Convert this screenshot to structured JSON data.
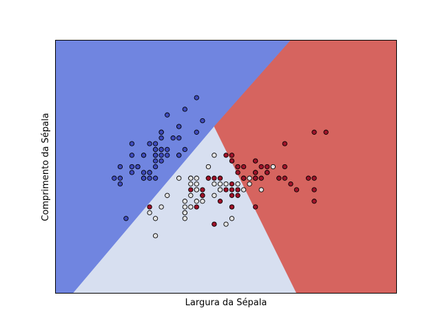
{
  "chart_data": {
    "type": "scatter",
    "title": "",
    "xlabel": "Largura da Sépala",
    "ylabel": "Comprimento da Sépala",
    "xlim": [
      3.3,
      9.1
    ],
    "ylim": [
      1.0,
      5.4
    ],
    "grid": false,
    "ticks_visible": false,
    "background": "decision regions of a 3-class classifier",
    "region_colors": {
      "class_0": "#7085e0",
      "class_1": "#d7dff0",
      "class_2": "#d6645f"
    },
    "decision_regions": [
      {
        "class": "class_0",
        "polygon": [
          [
            3.3,
            1.0
          ],
          [
            3.6,
            1.0
          ],
          [
            6.0,
            3.9
          ],
          [
            7.3,
            5.4
          ],
          [
            3.3,
            5.4
          ]
        ]
      },
      {
        "class": "class_1",
        "polygon": [
          [
            3.6,
            1.0
          ],
          [
            7.4,
            1.0
          ],
          [
            6.0,
            3.9
          ]
        ]
      },
      {
        "class": "class_2",
        "polygon": [
          [
            6.0,
            3.9
          ],
          [
            7.4,
            1.0
          ],
          [
            9.1,
            1.0
          ],
          [
            9.1,
            5.4
          ],
          [
            7.3,
            5.4
          ]
        ]
      }
    ],
    "series": [
      {
        "marker_color": "#3f4bbd",
        "points": [
          [
            5.1,
            3.5
          ],
          [
            4.9,
            3.0
          ],
          [
            4.7,
            3.2
          ],
          [
            4.6,
            3.1
          ],
          [
            5.0,
            3.6
          ],
          [
            5.4,
            3.9
          ],
          [
            4.6,
            3.4
          ],
          [
            5.0,
            3.4
          ],
          [
            4.4,
            2.9
          ],
          [
            4.9,
            3.1
          ],
          [
            5.4,
            3.7
          ],
          [
            4.8,
            3.4
          ],
          [
            4.8,
            3.0
          ],
          [
            4.3,
            3.0
          ],
          [
            5.8,
            4.0
          ],
          [
            5.7,
            4.4
          ],
          [
            5.4,
            3.9
          ],
          [
            5.1,
            3.5
          ],
          [
            5.7,
            3.8
          ],
          [
            5.1,
            3.8
          ],
          [
            5.4,
            3.4
          ],
          [
            5.1,
            3.7
          ],
          [
            4.6,
            3.6
          ],
          [
            5.1,
            3.3
          ],
          [
            4.8,
            3.4
          ],
          [
            5.0,
            3.0
          ],
          [
            5.0,
            3.4
          ],
          [
            5.2,
            3.5
          ],
          [
            5.2,
            3.4
          ],
          [
            4.7,
            3.2
          ],
          [
            4.8,
            3.1
          ],
          [
            5.4,
            3.4
          ],
          [
            5.2,
            4.1
          ],
          [
            5.5,
            4.2
          ],
          [
            4.9,
            3.1
          ],
          [
            5.0,
            3.2
          ],
          [
            5.5,
            3.5
          ],
          [
            4.9,
            3.6
          ],
          [
            4.4,
            3.0
          ],
          [
            5.1,
            3.4
          ],
          [
            5.0,
            3.5
          ],
          [
            4.5,
            2.3
          ],
          [
            4.4,
            3.2
          ],
          [
            5.0,
            3.5
          ],
          [
            5.1,
            3.8
          ],
          [
            4.8,
            3.0
          ],
          [
            5.1,
            3.8
          ],
          [
            4.6,
            3.2
          ],
          [
            5.3,
            3.7
          ],
          [
            5.0,
            3.3
          ]
        ]
      },
      {
        "marker_color": "#e2e2e2",
        "points": [
          [
            7.0,
            3.2
          ],
          [
            6.4,
            3.2
          ],
          [
            6.9,
            3.1
          ],
          [
            5.5,
            2.3
          ],
          [
            6.5,
            2.8
          ],
          [
            5.7,
            2.8
          ],
          [
            6.3,
            3.3
          ],
          [
            4.9,
            2.4
          ],
          [
            6.6,
            2.9
          ],
          [
            5.2,
            2.7
          ],
          [
            5.0,
            2.0
          ],
          [
            5.9,
            3.0
          ],
          [
            6.0,
            2.2
          ],
          [
            6.1,
            2.9
          ],
          [
            5.6,
            2.9
          ],
          [
            6.7,
            3.1
          ],
          [
            5.6,
            3.0
          ],
          [
            5.8,
            2.7
          ],
          [
            6.2,
            2.2
          ],
          [
            5.6,
            2.5
          ],
          [
            5.9,
            3.2
          ],
          [
            6.1,
            2.8
          ],
          [
            6.3,
            2.5
          ],
          [
            6.1,
            2.8
          ],
          [
            6.4,
            2.9
          ],
          [
            6.6,
            3.0
          ],
          [
            6.8,
            2.8
          ],
          [
            6.7,
            3.0
          ],
          [
            6.0,
            2.9
          ],
          [
            5.7,
            2.6
          ],
          [
            5.5,
            2.4
          ],
          [
            5.5,
            2.4
          ],
          [
            5.8,
            2.7
          ],
          [
            6.0,
            2.7
          ],
          [
            5.4,
            3.0
          ],
          [
            6.0,
            3.4
          ],
          [
            6.7,
            3.1
          ],
          [
            6.3,
            2.3
          ],
          [
            5.6,
            3.0
          ],
          [
            5.5,
            2.5
          ],
          [
            5.5,
            2.6
          ],
          [
            6.1,
            3.0
          ],
          [
            5.8,
            2.6
          ],
          [
            5.0,
            2.3
          ],
          [
            5.6,
            2.7
          ],
          [
            5.7,
            3.0
          ],
          [
            5.7,
            2.9
          ],
          [
            6.2,
            2.9
          ],
          [
            5.1,
            2.5
          ],
          [
            5.7,
            2.8
          ]
        ]
      },
      {
        "marker_color": "#a0132a",
        "points": [
          [
            6.3,
            3.3
          ],
          [
            5.8,
            2.7
          ],
          [
            7.1,
            3.0
          ],
          [
            6.3,
            2.9
          ],
          [
            6.5,
            3.0
          ],
          [
            7.6,
            3.0
          ],
          [
            4.9,
            2.5
          ],
          [
            7.3,
            2.9
          ],
          [
            6.7,
            2.5
          ],
          [
            7.2,
            3.6
          ],
          [
            6.5,
            3.2
          ],
          [
            6.4,
            2.7
          ],
          [
            6.8,
            3.0
          ],
          [
            5.7,
            2.5
          ],
          [
            5.8,
            2.8
          ],
          [
            6.4,
            3.2
          ],
          [
            6.5,
            3.0
          ],
          [
            7.7,
            3.8
          ],
          [
            7.7,
            2.6
          ],
          [
            6.0,
            2.2
          ],
          [
            6.9,
            3.2
          ],
          [
            5.6,
            2.8
          ],
          [
            7.7,
            2.8
          ],
          [
            6.3,
            2.7
          ],
          [
            6.7,
            3.3
          ],
          [
            7.2,
            3.2
          ],
          [
            6.2,
            2.8
          ],
          [
            6.1,
            3.0
          ],
          [
            6.4,
            2.8
          ],
          [
            7.2,
            3.0
          ],
          [
            7.4,
            2.8
          ],
          [
            7.9,
            3.8
          ],
          [
            6.4,
            2.8
          ],
          [
            6.3,
            2.8
          ],
          [
            6.1,
            2.6
          ],
          [
            7.7,
            3.0
          ],
          [
            6.3,
            3.4
          ],
          [
            6.4,
            3.1
          ],
          [
            6.0,
            3.0
          ],
          [
            6.9,
            3.1
          ],
          [
            6.7,
            3.1
          ],
          [
            6.9,
            3.1
          ],
          [
            5.8,
            2.7
          ],
          [
            6.8,
            3.2
          ],
          [
            6.7,
            3.3
          ],
          [
            6.7,
            3.0
          ],
          [
            6.3,
            2.5
          ],
          [
            6.5,
            3.0
          ],
          [
            6.2,
            3.4
          ],
          [
            5.9,
            3.0
          ]
        ]
      }
    ]
  }
}
